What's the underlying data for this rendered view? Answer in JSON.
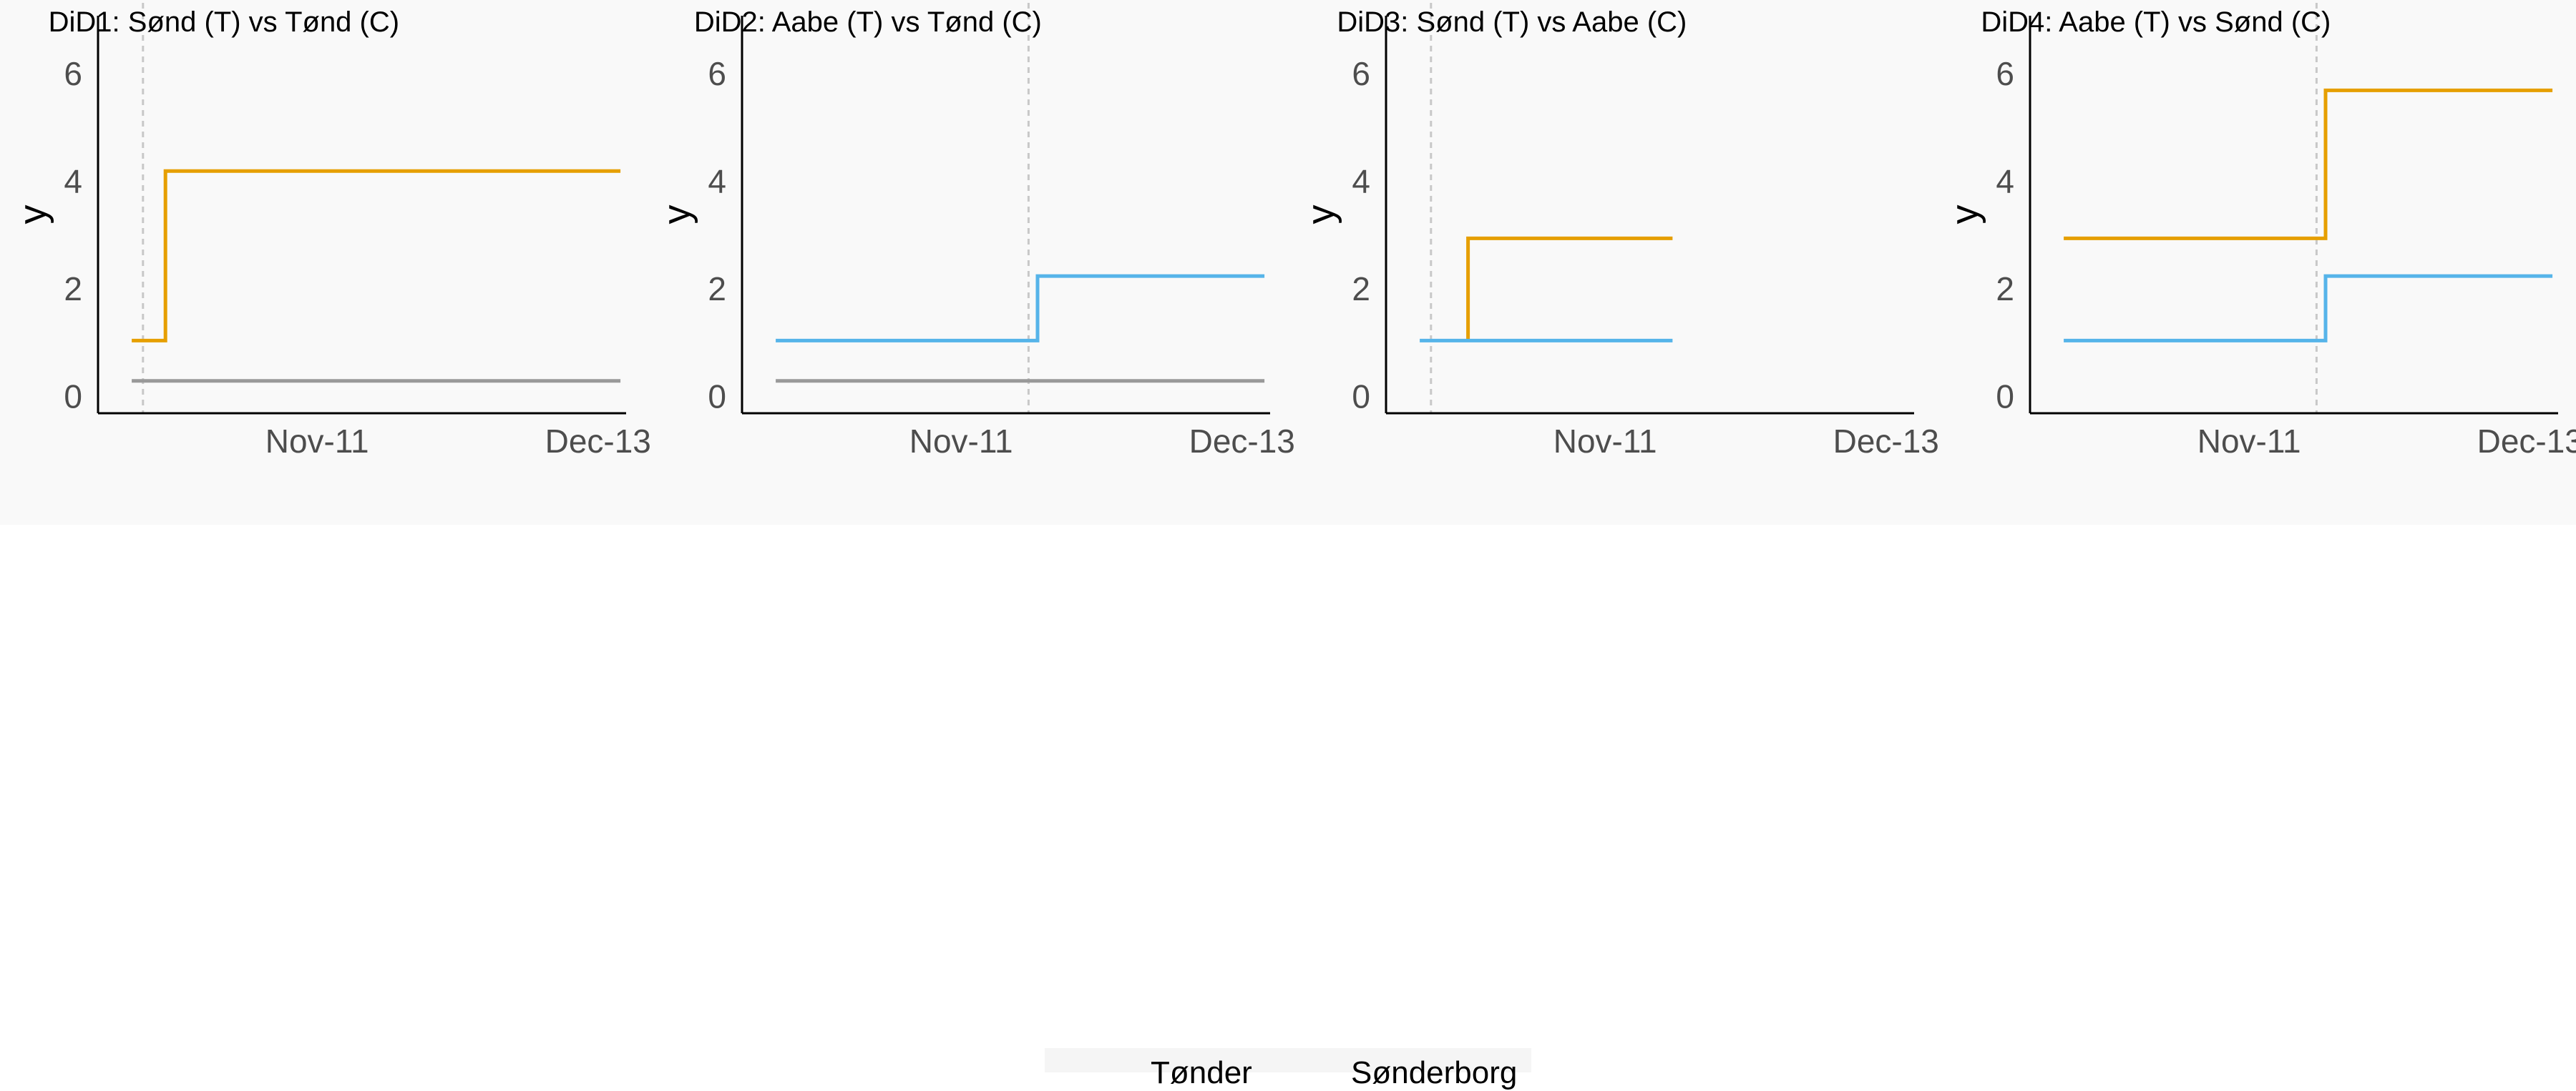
{
  "colors": {
    "treated": "#E69F00",
    "control_aabe": "#56B4E9",
    "control_tond": "#999999",
    "event_line": "#c8c8c8",
    "axis": "#000000",
    "tick_text": "#4d4d4d"
  },
  "shared_axes": {
    "ylabel": "y",
    "ylim": [
      -0.3,
      7.3
    ],
    "y_ticks": [
      0,
      2,
      4,
      6
    ],
    "x_ticks": [
      {
        "label": "Nov-11",
        "month_index": 0
      },
      {
        "label": "Dec-13",
        "month_index": 25
      }
    ]
  },
  "chart_data": [
    {
      "type": "line",
      "title": "DiD1: Sønd (T) vs Tønd (C)",
      "ylabel": "y",
      "xlim": [
        -19.5,
        27.5
      ],
      "event_x": -15.5,
      "series": [
        {
          "color": "#E69F00",
          "x": [
            -16.5,
            -13.5,
            -13.5,
            27
          ],
          "y": [
            1.05,
            1.05,
            4.2,
            4.2
          ]
        },
        {
          "color": "#999999",
          "x": [
            -16.5,
            27
          ],
          "y": [
            0.3,
            0.3
          ]
        }
      ]
    },
    {
      "type": "line",
      "title": "DiD2: Aabe (T) vs Tønd (C)",
      "ylabel": "y",
      "xlim": [
        -19.5,
        27.5
      ],
      "event_x": 6,
      "series": [
        {
          "color": "#56B4E9",
          "x": [
            -16.5,
            6.8,
            6.8,
            27
          ],
          "y": [
            1.05,
            1.05,
            2.25,
            2.25
          ]
        },
        {
          "color": "#999999",
          "x": [
            -16.5,
            27
          ],
          "y": [
            0.3,
            0.3
          ]
        }
      ]
    },
    {
      "type": "line",
      "title": "DiD3: Sønd (T) vs Aabe (C)",
      "ylabel": "y",
      "xlim": [
        -19.5,
        27.5
      ],
      "event_x": -15.5,
      "series": [
        {
          "color": "#E69F00",
          "x": [
            -12.2,
            -12.2,
            6
          ],
          "y": [
            1.05,
            2.95,
            2.95
          ]
        },
        {
          "color": "#56B4E9",
          "x": [
            -16.5,
            6
          ],
          "y": [
            1.05,
            1.05
          ]
        }
      ]
    },
    {
      "type": "line",
      "title": "DiD4: Aabe (T) vs Sønd (C)",
      "ylabel": "y",
      "xlim": [
        -19.5,
        27.5
      ],
      "event_x": 6,
      "series": [
        {
          "color": "#E69F00",
          "x": [
            -16.5,
            6.8,
            6.8,
            27
          ],
          "y": [
            2.95,
            2.95,
            5.7,
            5.7
          ]
        },
        {
          "color": "#56B4E9",
          "x": [
            -16.5,
            6.8,
            6.8,
            27
          ],
          "y": [
            1.05,
            1.05,
            2.25,
            2.25
          ]
        }
      ]
    }
  ],
  "legend": {
    "items": [
      {
        "label": "Tønder",
        "color": "#999999"
      },
      {
        "label": "Sønderborg",
        "color": "#E69F00"
      }
    ]
  }
}
